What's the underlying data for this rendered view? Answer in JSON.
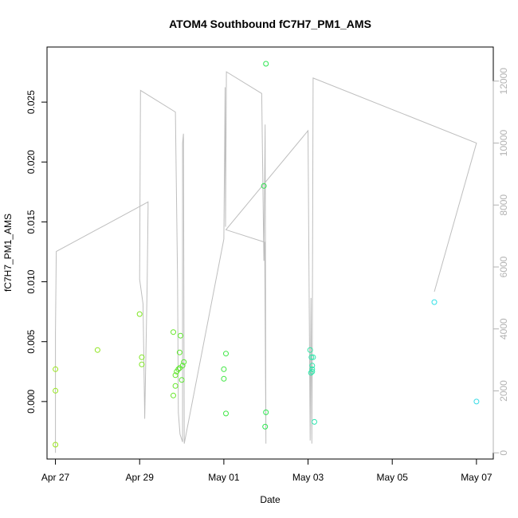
{
  "chart_data": {
    "type": "scatter",
    "title": "ATOM4 Southbound fC7H7_PM1_AMS",
    "xlabel": "Date",
    "ylabel": "fC7H7_PM1_AMS",
    "x_ticks": [
      "Apr 27",
      "Apr 29",
      "May 01",
      "May 03",
      "May 05",
      "May 07"
    ],
    "y_ticks": [
      "0.000",
      "0.005",
      "0.010",
      "0.015",
      "0.020",
      "0.025"
    ],
    "y2_ticks": [
      "0",
      "2000",
      "4000",
      "6000",
      "8000",
      "10000",
      "12000"
    ],
    "xlim": [
      -0.2,
      10.4
    ],
    "ylim": [
      -0.0048,
      0.0296
    ],
    "y2lim": [
      -200,
      13100
    ],
    "grid": false,
    "line_color": "#bebebe",
    "tick_color_right": "#b3b3b3",
    "series": [
      {
        "type": "scatter",
        "points": [
          {
            "x": 0.0,
            "y": -0.0036,
            "color": "#99e61a"
          },
          {
            "x": 0.0,
            "y": 0.0009,
            "color": "#96e61c"
          },
          {
            "x": 0.0,
            "y": 0.0027,
            "color": "#99e61a"
          },
          {
            "x": 1.0,
            "y": 0.0043,
            "color": "#8fe61e"
          },
          {
            "x": 2.0,
            "y": 0.0073,
            "color": "#7ee622"
          },
          {
            "x": 2.05,
            "y": 0.0037,
            "color": "#7ee622"
          },
          {
            "x": 2.05,
            "y": 0.0031,
            "color": "#7ee622"
          },
          {
            "x": 2.8,
            "y": 0.0058,
            "color": "#66e628"
          },
          {
            "x": 2.8,
            "y": 0.0005,
            "color": "#66e628"
          },
          {
            "x": 2.85,
            "y": 0.0022,
            "color": "#63e629"
          },
          {
            "x": 2.85,
            "y": 0.0013,
            "color": "#63e629"
          },
          {
            "x": 2.88,
            "y": 0.0025,
            "color": "#60e62a"
          },
          {
            "x": 2.92,
            "y": 0.0027,
            "color": "#5de62b"
          },
          {
            "x": 2.95,
            "y": 0.0028,
            "color": "#5be62c"
          },
          {
            "x": 2.95,
            "y": 0.0041,
            "color": "#5be62c"
          },
          {
            "x": 2.97,
            "y": 0.0055,
            "color": "#5ae62c"
          },
          {
            "x": 3.0,
            "y": 0.0018,
            "color": "#58e62d"
          },
          {
            "x": 3.02,
            "y": 0.003,
            "color": "#56e62e"
          },
          {
            "x": 3.05,
            "y": 0.0033,
            "color": "#55e62e"
          },
          {
            "x": 4.0,
            "y": 0.0027,
            "color": "#3ee640"
          },
          {
            "x": 4.0,
            "y": 0.0019,
            "color": "#3ee640"
          },
          {
            "x": 4.05,
            "y": 0.004,
            "color": "#3ce642"
          },
          {
            "x": 4.05,
            "y": -0.001,
            "color": "#3ce642"
          },
          {
            "x": 4.95,
            "y": 0.018,
            "color": "#2ee64f"
          },
          {
            "x": 5.0,
            "y": 0.0282,
            "color": "#2de651"
          },
          {
            "x": 5.0,
            "y": -0.0009,
            "color": "#2de651"
          },
          {
            "x": 4.98,
            "y": -0.0021,
            "color": "#2de650"
          },
          {
            "x": 6.05,
            "y": 0.0043,
            "color": "#2ee6a5"
          },
          {
            "x": 6.08,
            "y": 0.0037,
            "color": "#2ee6aa"
          },
          {
            "x": 6.12,
            "y": 0.0037,
            "color": "#2ee6ad"
          },
          {
            "x": 6.1,
            "y": 0.003,
            "color": "#2ee6ab"
          },
          {
            "x": 6.1,
            "y": 0.0027,
            "color": "#2ee6ab"
          },
          {
            "x": 6.1,
            "y": 0.0025,
            "color": "#2ee6ab"
          },
          {
            "x": 6.07,
            "y": 0.0024,
            "color": "#2ee6a8"
          },
          {
            "x": 6.15,
            "y": -0.0017,
            "color": "#2ee6b0"
          },
          {
            "x": 9.0,
            "y": 0.0083,
            "color": "#33e0e6"
          },
          {
            "x": 10.0,
            "y": 0.0,
            "color": "#36dbe6"
          }
        ]
      },
      {
        "type": "line",
        "axis": "right",
        "points": [
          {
            "x": 0.0,
            "y": 0
          },
          {
            "x": 0.0,
            "y": 3900
          },
          {
            "x": 0.02,
            "y": 6500
          },
          {
            "x": 2.2,
            "y": 8100
          },
          {
            "x": 2.2,
            "y": 7900
          },
          {
            "x": 2.18,
            "y": 5500
          },
          {
            "x": 2.12,
            "y": 1100
          },
          {
            "x": 2.08,
            "y": 4800
          },
          {
            "x": 2.0,
            "y": 5600
          },
          {
            "x": 2.02,
            "y": 11700
          },
          {
            "x": 2.85,
            "y": 11000
          },
          {
            "x": 2.9,
            "y": 5600
          },
          {
            "x": 2.92,
            "y": 1300
          },
          {
            "x": 2.96,
            "y": 600
          },
          {
            "x": 3.02,
            "y": 350
          },
          {
            "x": 3.02,
            "y": 10000
          },
          {
            "x": 3.04,
            "y": 10300
          },
          {
            "x": 3.06,
            "y": 300
          },
          {
            "x": 4.0,
            "y": 6900
          },
          {
            "x": 4.03,
            "y": 11800
          },
          {
            "x": 4.04,
            "y": 7300
          },
          {
            "x": 4.06,
            "y": 12300
          },
          {
            "x": 4.9,
            "y": 11600
          },
          {
            "x": 4.95,
            "y": 6200
          },
          {
            "x": 4.98,
            "y": 10600
          },
          {
            "x": 5.0,
            "y": 300
          },
          {
            "x": 4.97,
            "y": 6800
          },
          {
            "x": 4.05,
            "y": 7200
          },
          {
            "x": 6.0,
            "y": 10400
          },
          {
            "x": 6.05,
            "y": 400
          },
          {
            "x": 6.07,
            "y": 5000
          },
          {
            "x": 6.09,
            "y": 300
          },
          {
            "x": 6.1,
            "y": 3000
          },
          {
            "x": 6.12,
            "y": 12100
          },
          {
            "x": 10.0,
            "y": 10000
          },
          {
            "x": 9.0,
            "y": 5200
          }
        ]
      }
    ]
  }
}
